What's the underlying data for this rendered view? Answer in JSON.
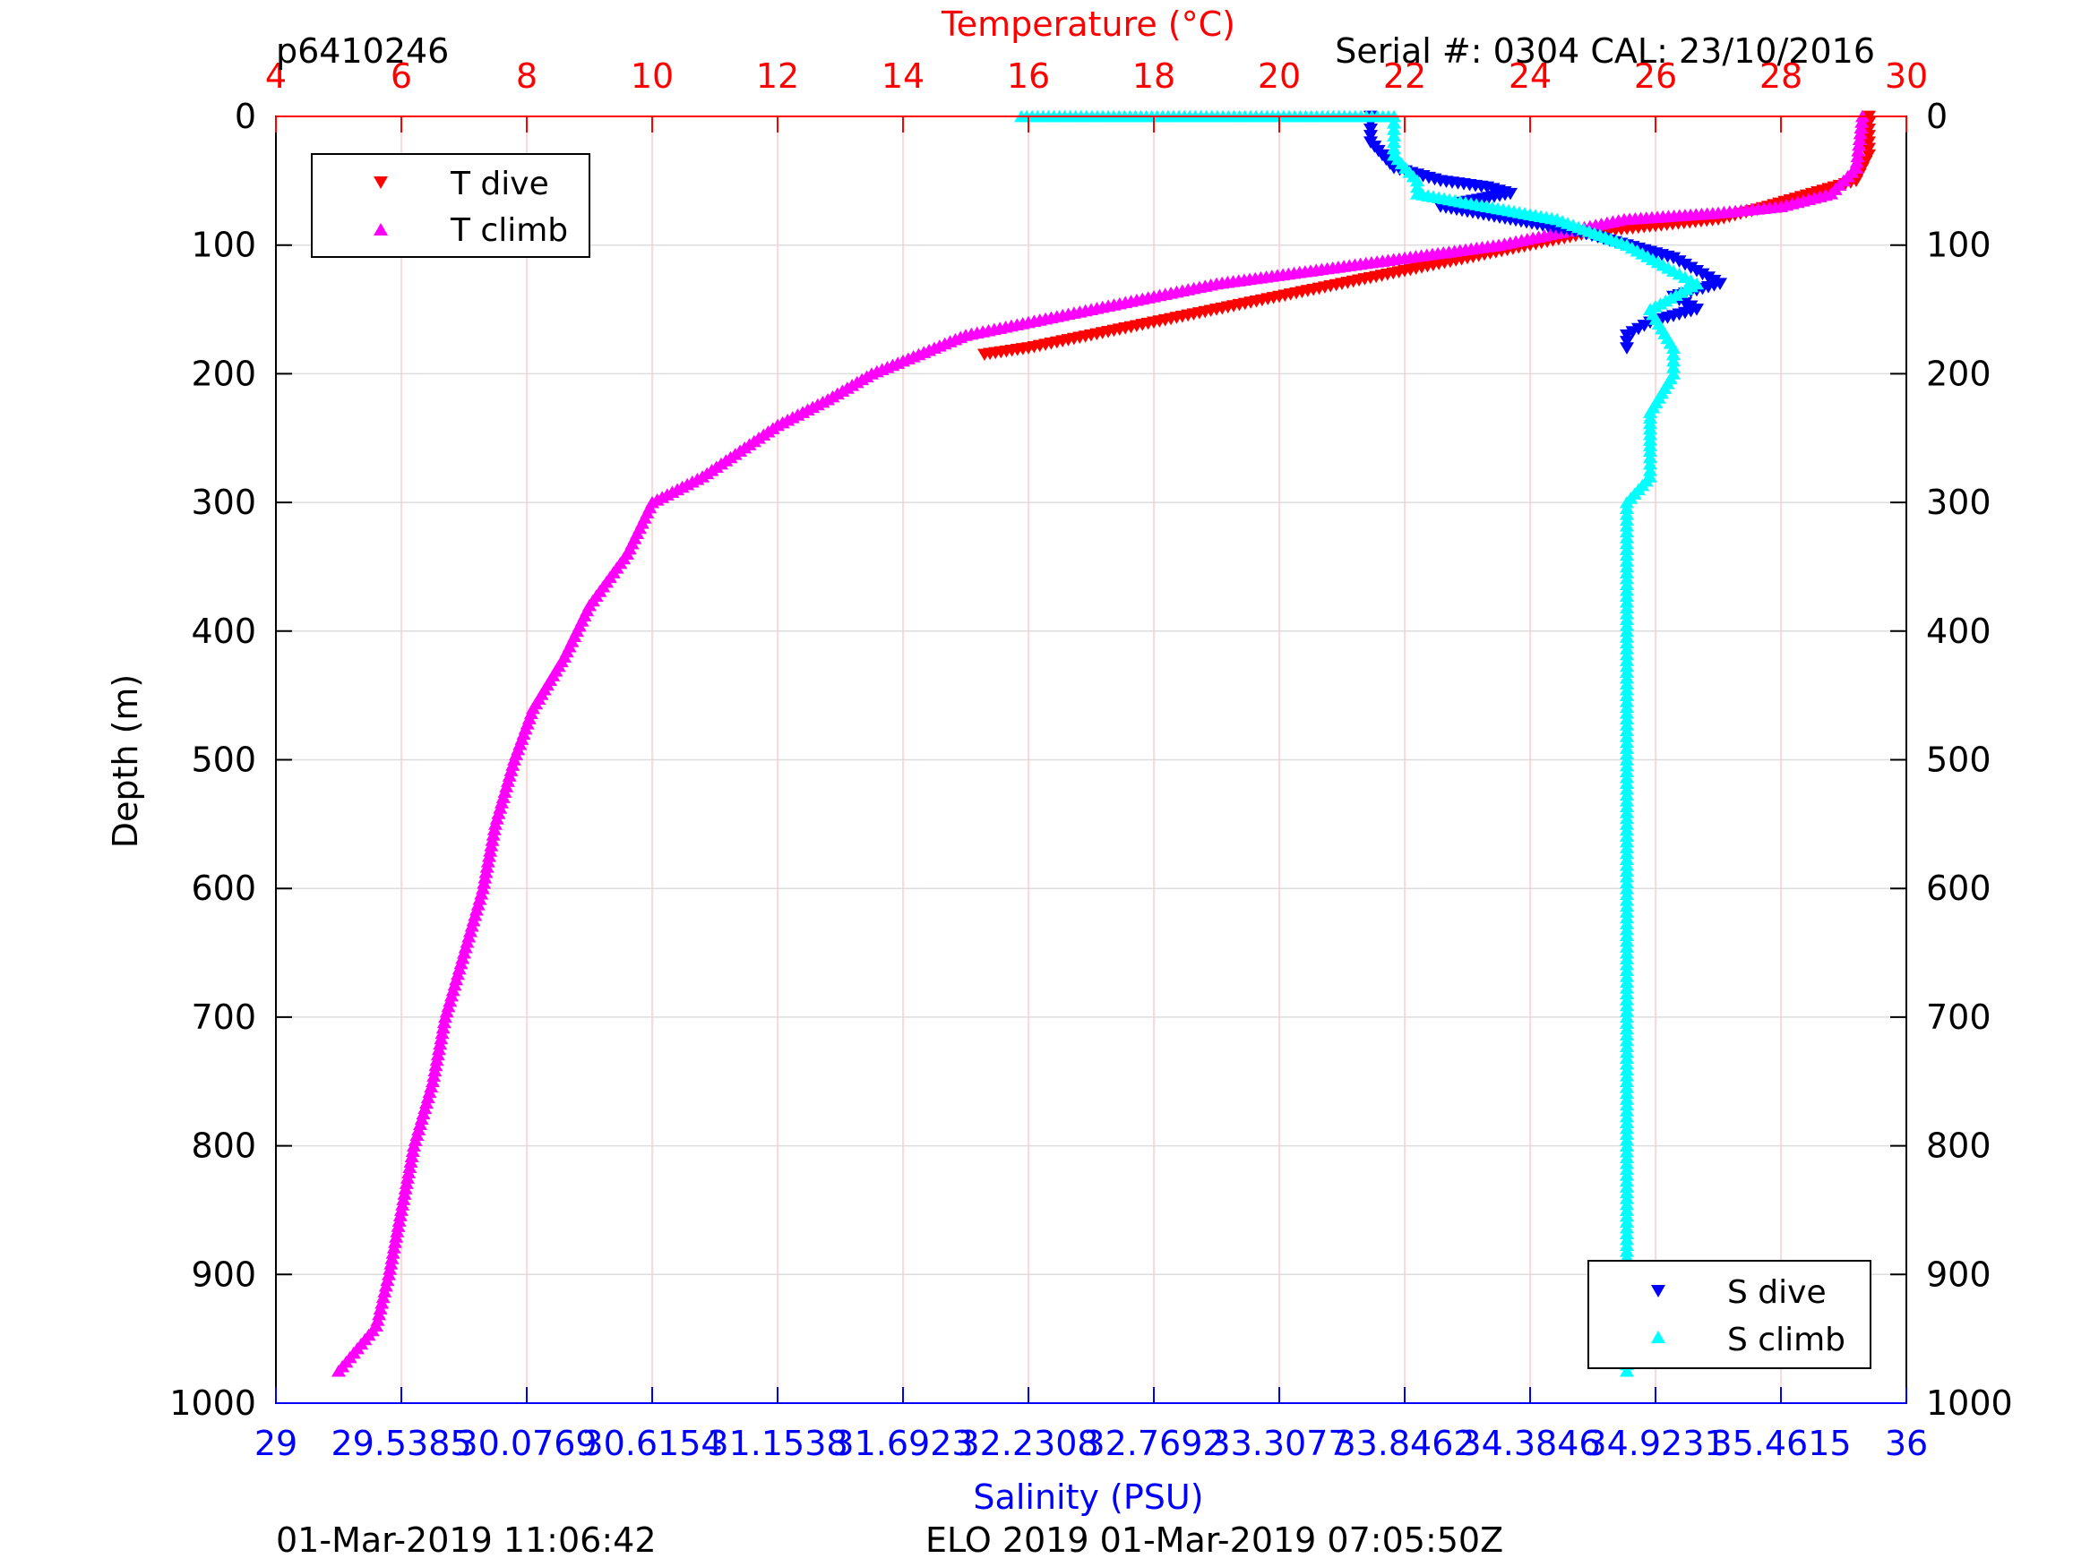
{
  "header": {
    "id_label": "p6410246",
    "serial_label": "Serial #: 0304  CAL: 23/10/2016"
  },
  "footer": {
    "left_timestamp": "01-Mar-2019 11:06:42",
    "mission_label": "ELO 2019 01-Mar-2019 07:05:50Z"
  },
  "colors": {
    "temperature_axis": "#ff0000",
    "salinity_axis": "#0000ff",
    "t_dive": "#ff0000",
    "t_climb": "#ff00ff",
    "s_dive": "#0000ff",
    "s_climb": "#00ffff",
    "grid_depth": "#dddddd",
    "grid_temp": "#ffcccc"
  },
  "chart_data": {
    "type": "scatter",
    "title": "",
    "top_axis": {
      "label": "Temperature (°C)",
      "range": [
        4,
        30
      ],
      "ticks": [
        "4",
        "6",
        "8",
        "10",
        "12",
        "14",
        "16",
        "18",
        "20",
        "22",
        "24",
        "26",
        "28",
        "30"
      ],
      "tick_values": [
        4,
        6,
        8,
        10,
        12,
        14,
        16,
        18,
        20,
        22,
        24,
        26,
        28,
        30
      ]
    },
    "bottom_axis": {
      "label": "Salinity (PSU)",
      "range": [
        29,
        36
      ],
      "ticks": [
        "29",
        "29.5385",
        "30.0769",
        "30.6154",
        "31.1538",
        "31.6923",
        "32.2308",
        "32.7692",
        "33.3077",
        "33.8462",
        "34.3846",
        "34.9231",
        "35.4615",
        "36"
      ],
      "tick_values": [
        29,
        29.5385,
        30.0769,
        30.6154,
        31.1538,
        31.6923,
        32.2308,
        32.7692,
        33.3077,
        33.8462,
        34.3846,
        34.9231,
        35.4615,
        36
      ]
    },
    "y_axis": {
      "label": "Depth (m)",
      "range": [
        0,
        1000
      ],
      "reversed": true,
      "ticks": [
        "0",
        "100",
        "200",
        "300",
        "400",
        "500",
        "600",
        "700",
        "800",
        "900",
        "1000"
      ],
      "tick_values": [
        0,
        100,
        200,
        300,
        400,
        500,
        600,
        700,
        800,
        900,
        1000
      ]
    },
    "grid": true,
    "legends": [
      {
        "placement": "top-left",
        "entries": [
          {
            "name": "T dive",
            "marker": "triangle-down",
            "color": "#ff0000"
          },
          {
            "name": "T climb",
            "marker": "triangle-up",
            "color": "#ff00ff"
          }
        ]
      },
      {
        "placement": "bottom-right",
        "entries": [
          {
            "name": "S dive",
            "marker": "triangle-down",
            "color": "#0000ff"
          },
          {
            "name": "S climb",
            "marker": "triangle-up",
            "color": "#00ffff"
          }
        ]
      }
    ],
    "series": [
      {
        "name": "T dive",
        "axis": "temperature",
        "marker": "triangle-down",
        "color": "#ff0000",
        "points": [
          [
            29.4,
            0
          ],
          [
            29.4,
            10
          ],
          [
            29.4,
            20
          ],
          [
            29.4,
            30
          ],
          [
            29.3,
            40
          ],
          [
            29.2,
            50
          ],
          [
            28.5,
            60
          ],
          [
            27.8,
            70
          ],
          [
            27.0,
            80
          ],
          [
            26.0,
            85
          ],
          [
            25.0,
            90
          ],
          [
            24.0,
            100
          ],
          [
            23.0,
            110
          ],
          [
            22.0,
            120
          ],
          [
            21.0,
            130
          ],
          [
            20.0,
            140
          ],
          [
            19.0,
            150
          ],
          [
            18.0,
            160
          ],
          [
            17.0,
            170
          ],
          [
            16.0,
            180
          ],
          [
            15.3,
            185
          ]
        ]
      },
      {
        "name": "T climb",
        "axis": "temperature",
        "marker": "triangle-up",
        "color": "#ff00ff",
        "points": [
          [
            29.3,
            0
          ],
          [
            29.2,
            40
          ],
          [
            28.8,
            60
          ],
          [
            28.0,
            70
          ],
          [
            27.0,
            75
          ],
          [
            25.5,
            80
          ],
          [
            24.5,
            90
          ],
          [
            23.5,
            100
          ],
          [
            22.0,
            110
          ],
          [
            20.5,
            120
          ],
          [
            19.0,
            130
          ],
          [
            18.0,
            140
          ],
          [
            17.0,
            150
          ],
          [
            16.0,
            160
          ],
          [
            15.0,
            170
          ],
          [
            14.0,
            190
          ],
          [
            13.5,
            200
          ],
          [
            12.8,
            220
          ],
          [
            12.0,
            240
          ],
          [
            11.4,
            260
          ],
          [
            10.8,
            280
          ],
          [
            10.0,
            300
          ],
          [
            9.6,
            340
          ],
          [
            9.0,
            380
          ],
          [
            8.6,
            420
          ],
          [
            8.1,
            460
          ],
          [
            7.8,
            500
          ],
          [
            7.5,
            550
          ],
          [
            7.3,
            600
          ],
          [
            7.0,
            650
          ],
          [
            6.7,
            700
          ],
          [
            6.5,
            750
          ],
          [
            6.2,
            800
          ],
          [
            6.0,
            850
          ],
          [
            5.8,
            900
          ],
          [
            5.6,
            940
          ],
          [
            5.0,
            975
          ]
        ]
      },
      {
        "name": "S dive",
        "axis": "salinity",
        "marker": "triangle-down",
        "color": "#0000ff",
        "points": [
          [
            33.7,
            0
          ],
          [
            33.7,
            20
          ],
          [
            33.8,
            40
          ],
          [
            34.0,
            50
          ],
          [
            34.2,
            55
          ],
          [
            34.3,
            60
          ],
          [
            34.0,
            70
          ],
          [
            34.3,
            80
          ],
          [
            34.6,
            90
          ],
          [
            34.8,
            100
          ],
          [
            35.0,
            110
          ],
          [
            35.1,
            120
          ],
          [
            35.2,
            130
          ],
          [
            35.0,
            140
          ],
          [
            35.1,
            150
          ],
          [
            34.9,
            160
          ],
          [
            34.8,
            170
          ],
          [
            34.8,
            180
          ]
        ]
      },
      {
        "name": "S climb",
        "axis": "salinity",
        "marker": "triangle-up",
        "color": "#00ffff",
        "points": [
          [
            32.2,
            0
          ],
          [
            32.9,
            0
          ],
          [
            33.8,
            0
          ],
          [
            33.8,
            10
          ],
          [
            33.8,
            30
          ],
          [
            33.9,
            50
          ],
          [
            33.9,
            60
          ],
          [
            34.2,
            70
          ],
          [
            34.5,
            80
          ],
          [
            34.8,
            100
          ],
          [
            35.0,
            120
          ],
          [
            35.1,
            130
          ],
          [
            34.9,
            150
          ],
          [
            35.0,
            180
          ],
          [
            35.0,
            200
          ],
          [
            34.9,
            230
          ],
          [
            34.9,
            260
          ],
          [
            34.9,
            280
          ],
          [
            34.8,
            300
          ],
          [
            34.8,
            350
          ],
          [
            34.8,
            400
          ],
          [
            34.8,
            450
          ],
          [
            34.8,
            500
          ],
          [
            34.8,
            550
          ],
          [
            34.8,
            600
          ],
          [
            34.8,
            650
          ],
          [
            34.8,
            700
          ],
          [
            34.8,
            750
          ],
          [
            34.8,
            800
          ],
          [
            34.8,
            850
          ],
          [
            34.8,
            900
          ],
          [
            34.8,
            950
          ],
          [
            34.8,
            975
          ]
        ]
      }
    ]
  }
}
